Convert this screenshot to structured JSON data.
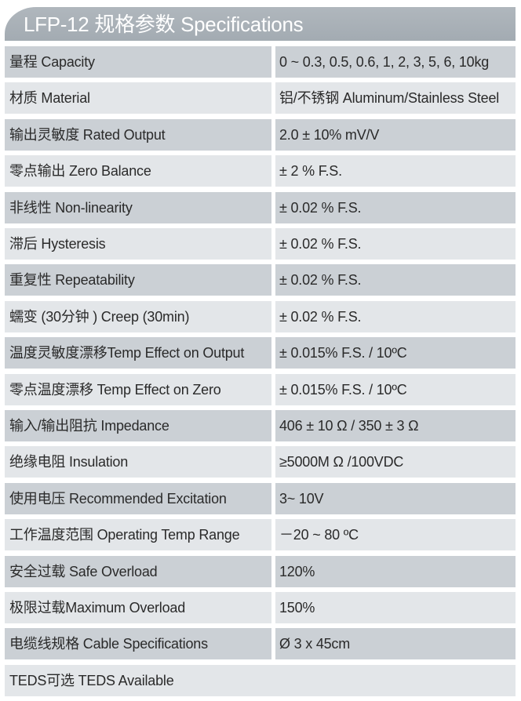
{
  "title": "LFP-12 规格参数 Specifications",
  "rows": [
    {
      "label": "量程 Capacity",
      "value": "0 ~ 0.3, 0.5, 0.6, 1, 2, 3, 5, 6, 10kg"
    },
    {
      "label": "材质 Material",
      "value": "铝/不锈钢 Aluminum/Stainless Steel"
    },
    {
      "label": "输出灵敏度 Rated Output",
      "value": "2.0 ± 10% mV/V"
    },
    {
      "label": "零点输出  Zero Balance",
      "value": " ± 2 % F.S."
    },
    {
      "label": "非线性 Non-linearity",
      "value": " ± 0.02 % F.S."
    },
    {
      "label": "滞后 Hysteresis",
      "value": " ± 0.02 % F.S."
    },
    {
      "label": "重复性 Repeatability",
      "value": " ± 0.02 % F.S."
    },
    {
      "label": "蠕变 (30分钟 ) Creep (30min)",
      "value": " ± 0.02 % F.S."
    },
    {
      "label": "温度灵敏度漂移Temp Effect on Output",
      "value": " ± 0.015% F.S. / 10ºC"
    },
    {
      "label": "零点温度漂移 Temp Effect on Zero",
      "value": " ± 0.015% F.S. / 10ºC"
    },
    {
      "label": "输入/输出阻抗 Impedance",
      "value": "406 ± 10 Ω  / 350 ± 3 Ω"
    },
    {
      "label": "绝缘电阻  Insulation",
      "value": "≥5000M Ω /100VDC"
    },
    {
      "label": "使用电压 Recommended Excitation",
      "value": "3~ 10V"
    },
    {
      "label": "工作温度范围 Operating Temp  Range",
      "value": "－20 ~ 80 ºC"
    },
    {
      "label": "安全过载 Safe Overload",
      "value": "120%"
    },
    {
      "label": "极限过载Maximum Overload",
      "value": "150%"
    },
    {
      "label": "电缆线规格 Cable Specifications",
      "value": "Ø 3  x 45cm"
    }
  ],
  "footer_row": "TEDS可选 TEDS Available"
}
